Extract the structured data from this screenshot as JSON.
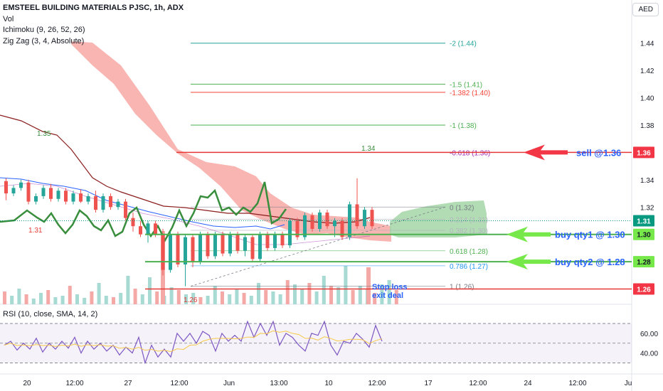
{
  "header": {
    "title": "EMSTEEL BUILDING MATERIALS PJSC, 1h, ADX",
    "indicators": [
      "Vol",
      "Ichimoku (9, 26, 52, 26)",
      "Zig Zag (3, 4, Absolute)"
    ],
    "currency": "AED"
  },
  "rsi": {
    "label": "RSI (10, close, SMA, 14, 2)",
    "ticks": [
      "60.00",
      "40.00"
    ]
  },
  "colors": {
    "fib_green": "#4caf50",
    "fib_teal": "#26a69a",
    "fib_red": "#f44336",
    "fib_purple": "#9c27b0",
    "cloud_red": "#f8a8a4",
    "cloud_green": "#a5d6a7",
    "price_line": "#e53935",
    "candle_up": "#26a69a",
    "candle_down": "#ef5350",
    "rsi_line": "#7e57c2",
    "arrow_red": "#f23645",
    "arrow_green": "#76e84a",
    "annotation_blue": "#2962ff"
  },
  "chart_data": [
    {
      "type": "candlestick",
      "title": "EMSTEEL BUILDING MATERIALS PJSC, 1h, ADX",
      "y_axis": {
        "ticks": [
          "1.44",
          "1.42",
          "1.40",
          "1.38",
          "1.36",
          "1.34",
          "1.32",
          "1.30",
          "1.28",
          "1.26"
        ],
        "ylim": [
          1.253,
          1.456
        ]
      },
      "x_axis": {
        "ticks": [
          "20",
          "12:00",
          "27",
          "12:00",
          "Jun",
          "13:00",
          "10",
          "12:00",
          "17",
          "12:00",
          "24",
          "12:00",
          "Ju"
        ]
      },
      "price_labels": [
        {
          "text": "1.36",
          "value": 1.36,
          "color": "#f23645"
        },
        {
          "text": "1.31",
          "value": 1.31,
          "color": "#089981"
        },
        {
          "text": "1.30",
          "value": 1.3,
          "color": "#76e84a"
        },
        {
          "text": "1.28",
          "value": 1.28,
          "color": "#76e84a"
        },
        {
          "text": "1.26",
          "value": 1.26,
          "color": "#f23645"
        }
      ],
      "fib_levels": [
        {
          "label": "-2 (1.44)",
          "value": 1.44,
          "color": "#26a69a"
        },
        {
          "label": "-1.5 (1.41)",
          "value": 1.41,
          "color": "#4caf50"
        },
        {
          "label": "-1.382 (1.40)",
          "value": 1.404,
          "color": "#f44336"
        },
        {
          "label": "-1 (1.38)",
          "value": 1.38,
          "color": "#4caf50"
        },
        {
          "label": "-0.618 (1.36)",
          "value": 1.36,
          "color": "#9c27b0"
        },
        {
          "label": "0 (1.32)",
          "value": 1.32,
          "color": "#787b86"
        },
        {
          "label": "0.214 (1.31)",
          "value": 1.311,
          "color": "#b2b5be"
        },
        {
          "label": "0.382 (1.30)",
          "value": 1.303,
          "color": "#b2b5be"
        },
        {
          "label": "0.618 (1.28)",
          "value": 1.288,
          "color": "#4caf50"
        },
        {
          "label": "0.786 (1.27)",
          "value": 1.277,
          "color": "#2196f3"
        },
        {
          "label": "1 (1.26)",
          "value": 1.262,
          "color": "#787b86"
        }
      ],
      "zigzag_labels": [
        {
          "text": "1.35",
          "color": "#388e3c"
        },
        {
          "text": "1.31",
          "color": "#e53935"
        },
        {
          "text": "1.26",
          "color": "#e53935"
        },
        {
          "text": "1.34",
          "color": "#388e3c"
        }
      ],
      "annotations": [
        {
          "text": "sell @1.36",
          "value": 1.36,
          "color": "#2962ff"
        },
        {
          "text": "buy qty1 @ 1.30",
          "value": 1.3,
          "color": "#2962ff"
        },
        {
          "text": "buy qty2 @ 1.28",
          "value": 1.28,
          "color": "#2962ff"
        },
        {
          "text": "Stop loss",
          "color": "#2962ff"
        },
        {
          "text": "exit deal",
          "color": "#2962ff"
        }
      ],
      "horizontal_lines": [
        {
          "value": 1.36,
          "color": "#e53935"
        },
        {
          "value": 1.3,
          "color": "#4caf50"
        },
        {
          "value": 1.28,
          "color": "#4caf50"
        },
        {
          "value": 1.26,
          "color": "#e53935"
        }
      ],
      "candles": [
        {
          "o": 1.339,
          "h": 1.341,
          "l": 1.325,
          "c": 1.33
        },
        {
          "o": 1.33,
          "h": 1.336,
          "l": 1.328,
          "c": 1.334
        },
        {
          "o": 1.334,
          "h": 1.34,
          "l": 1.332,
          "c": 1.338
        },
        {
          "o": 1.338,
          "h": 1.34,
          "l": 1.322,
          "c": 1.324
        },
        {
          "o": 1.324,
          "h": 1.33,
          "l": 1.322,
          "c": 1.328
        },
        {
          "o": 1.328,
          "h": 1.336,
          "l": 1.326,
          "c": 1.334
        },
        {
          "o": 1.334,
          "h": 1.337,
          "l": 1.324,
          "c": 1.326
        },
        {
          "o": 1.326,
          "h": 1.334,
          "l": 1.324,
          "c": 1.332
        },
        {
          "o": 1.332,
          "h": 1.334,
          "l": 1.322,
          "c": 1.324
        },
        {
          "o": 1.324,
          "h": 1.332,
          "l": 1.322,
          "c": 1.33
        },
        {
          "o": 1.33,
          "h": 1.333,
          "l": 1.323,
          "c": 1.324
        },
        {
          "o": 1.324,
          "h": 1.33,
          "l": 1.322,
          "c": 1.328
        },
        {
          "o": 1.328,
          "h": 1.332,
          "l": 1.316,
          "c": 1.318
        },
        {
          "o": 1.318,
          "h": 1.33,
          "l": 1.316,
          "c": 1.328
        },
        {
          "o": 1.328,
          "h": 1.33,
          "l": 1.318,
          "c": 1.32
        },
        {
          "o": 1.32,
          "h": 1.326,
          "l": 1.318,
          "c": 1.324
        },
        {
          "o": 1.324,
          "h": 1.326,
          "l": 1.31,
          "c": 1.312
        },
        {
          "o": 1.312,
          "h": 1.316,
          "l": 1.302,
          "c": 1.306
        },
        {
          "o": 1.306,
          "h": 1.31,
          "l": 1.298,
          "c": 1.3
        },
        {
          "o": 1.3,
          "h": 1.31,
          "l": 1.294,
          "c": 1.308
        },
        {
          "o": 1.308,
          "h": 1.31,
          "l": 1.298,
          "c": 1.3
        },
        {
          "o": 1.3,
          "h": 1.304,
          "l": 1.27,
          "c": 1.274
        },
        {
          "o": 1.274,
          "h": 1.302,
          "l": 1.272,
          "c": 1.3
        },
        {
          "o": 1.3,
          "h": 1.302,
          "l": 1.276,
          "c": 1.278
        },
        {
          "o": 1.278,
          "h": 1.3,
          "l": 1.262,
          "c": 1.298
        },
        {
          "o": 1.298,
          "h": 1.3,
          "l": 1.276,
          "c": 1.28
        },
        {
          "o": 1.28,
          "h": 1.302,
          "l": 1.278,
          "c": 1.3
        },
        {
          "o": 1.3,
          "h": 1.302,
          "l": 1.282,
          "c": 1.284
        },
        {
          "o": 1.284,
          "h": 1.302,
          "l": 1.282,
          "c": 1.3
        },
        {
          "o": 1.3,
          "h": 1.302,
          "l": 1.284,
          "c": 1.286
        },
        {
          "o": 1.286,
          "h": 1.302,
          "l": 1.284,
          "c": 1.3
        },
        {
          "o": 1.3,
          "h": 1.302,
          "l": 1.286,
          "c": 1.288
        },
        {
          "o": 1.288,
          "h": 1.3,
          "l": 1.284,
          "c": 1.298
        },
        {
          "o": 1.298,
          "h": 1.3,
          "l": 1.28,
          "c": 1.282
        },
        {
          "o": 1.282,
          "h": 1.302,
          "l": 1.28,
          "c": 1.3
        },
        {
          "o": 1.3,
          "h": 1.302,
          "l": 1.288,
          "c": 1.29
        },
        {
          "o": 1.29,
          "h": 1.302,
          "l": 1.288,
          "c": 1.3
        },
        {
          "o": 1.3,
          "h": 1.302,
          "l": 1.29,
          "c": 1.292
        },
        {
          "o": 1.292,
          "h": 1.312,
          "l": 1.29,
          "c": 1.31
        },
        {
          "o": 1.31,
          "h": 1.312,
          "l": 1.296,
          "c": 1.298
        },
        {
          "o": 1.298,
          "h": 1.316,
          "l": 1.296,
          "c": 1.314
        },
        {
          "o": 1.314,
          "h": 1.316,
          "l": 1.302,
          "c": 1.304
        },
        {
          "o": 1.304,
          "h": 1.318,
          "l": 1.302,
          "c": 1.316
        },
        {
          "o": 1.316,
          "h": 1.318,
          "l": 1.304,
          "c": 1.306
        },
        {
          "o": 1.306,
          "h": 1.312,
          "l": 1.298,
          "c": 1.31
        },
        {
          "o": 1.31,
          "h": 1.312,
          "l": 1.296,
          "c": 1.298
        },
        {
          "o": 1.298,
          "h": 1.324,
          "l": 1.296,
          "c": 1.322
        },
        {
          "o": 1.322,
          "h": 1.341,
          "l": 1.304,
          "c": 1.306
        },
        {
          "o": 1.306,
          "h": 1.32,
          "l": 1.304,
          "c": 1.318
        },
        {
          "o": 1.318,
          "h": 1.32,
          "l": 1.304,
          "c": 1.306
        }
      ]
    },
    {
      "type": "line",
      "title": "RSI (10, close, SMA, 14, 2)",
      "ylim": [
        26,
        78
      ],
      "series": [
        {
          "values": [
            48,
            52,
            43,
            50,
            44,
            55,
            41,
            50,
            44,
            52,
            45,
            56,
            40,
            52,
            44,
            50,
            42,
            48,
            38,
            46,
            40,
            56,
            30,
            48,
            36,
            44,
            36,
            60,
            52,
            60,
            50,
            62,
            58,
            42,
            60,
            52,
            58,
            52,
            72,
            56,
            70,
            58,
            72,
            48,
            60,
            56,
            48,
            42,
            60,
            58,
            72,
            48,
            38,
            52,
            50,
            60,
            54,
            46,
            68,
            52
          ]
        }
      ]
    }
  ]
}
